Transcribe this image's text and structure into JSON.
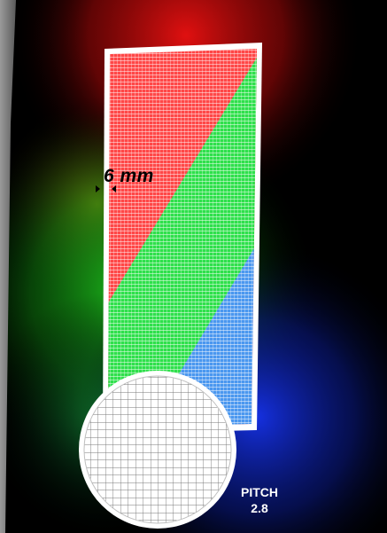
{
  "image": {
    "dimension_label": "6 mm",
    "pitch_label": "PITCH",
    "pitch_value": "2.8",
    "colors": {
      "red": "#ff4747",
      "green": "#2ee04b",
      "blue": "#4a97ef",
      "frame": "#ffffff",
      "background": "#000000",
      "left_strip": "#8a8a8a"
    }
  }
}
